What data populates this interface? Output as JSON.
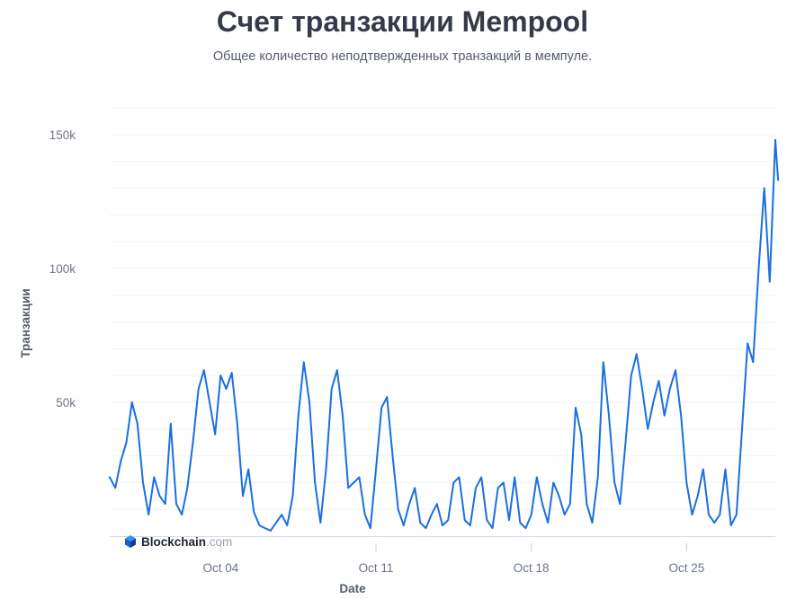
{
  "chart_data": {
    "type": "line",
    "title": "Счет транзакции Mempool",
    "subtitle": "Общее количество неподтвержденных транзакций в мемпуле.",
    "xlabel": "Date",
    "ylabel": "Транзакции",
    "x_ticks": [
      {
        "date": "2023-10-04",
        "label": "Oct 04"
      },
      {
        "date": "2023-10-11",
        "label": "Oct 11"
      },
      {
        "date": "2023-10-18",
        "label": "Oct 18"
      },
      {
        "date": "2023-10-25",
        "label": "Oct 25"
      }
    ],
    "y_ticks": [
      {
        "value": 50000,
        "label": "50k"
      },
      {
        "value": 100000,
        "label": "100k"
      },
      {
        "value": 150000,
        "label": "150k"
      }
    ],
    "xlim": [
      "2023-09-29",
      "2023-10-29"
    ],
    "ylim": [
      0,
      160000
    ],
    "grid": true,
    "line_color": "#1a6fe0",
    "series": [
      {
        "points": [
          [
            "2023-09-29 00:00",
            22000
          ],
          [
            "2023-09-29 06:00",
            18000
          ],
          [
            "2023-09-29 12:00",
            28000
          ],
          [
            "2023-09-29 18:00",
            35000
          ],
          [
            "2023-09-30 00:00",
            50000
          ],
          [
            "2023-09-30 06:00",
            42000
          ],
          [
            "2023-09-30 12:00",
            20000
          ],
          [
            "2023-09-30 18:00",
            8000
          ],
          [
            "2023-10-01 00:00",
            22000
          ],
          [
            "2023-10-01 06:00",
            15000
          ],
          [
            "2023-10-01 12:00",
            12000
          ],
          [
            "2023-10-01 18:00",
            42000
          ],
          [
            "2023-10-02 00:00",
            12000
          ],
          [
            "2023-10-02 06:00",
            8000
          ],
          [
            "2023-10-02 12:00",
            18000
          ],
          [
            "2023-10-02 18:00",
            35000
          ],
          [
            "2023-10-03 00:00",
            55000
          ],
          [
            "2023-10-03 06:00",
            62000
          ],
          [
            "2023-10-03 12:00",
            50000
          ],
          [
            "2023-10-03 18:00",
            38000
          ],
          [
            "2023-10-04 00:00",
            60000
          ],
          [
            "2023-10-04 06:00",
            55000
          ],
          [
            "2023-10-04 12:00",
            61000
          ],
          [
            "2023-10-04 18:00",
            42000
          ],
          [
            "2023-10-05 00:00",
            15000
          ],
          [
            "2023-10-05 06:00",
            25000
          ],
          [
            "2023-10-05 12:00",
            9000
          ],
          [
            "2023-10-05 18:00",
            4000
          ],
          [
            "2023-10-06 00:00",
            3000
          ],
          [
            "2023-10-06 06:00",
            2000
          ],
          [
            "2023-10-06 12:00",
            5000
          ],
          [
            "2023-10-06 18:00",
            8000
          ],
          [
            "2023-10-07 00:00",
            4000
          ],
          [
            "2023-10-07 06:00",
            15000
          ],
          [
            "2023-10-07 12:00",
            45000
          ],
          [
            "2023-10-07 18:00",
            65000
          ],
          [
            "2023-10-08 00:00",
            50000
          ],
          [
            "2023-10-08 06:00",
            20000
          ],
          [
            "2023-10-08 12:00",
            5000
          ],
          [
            "2023-10-08 18:00",
            25000
          ],
          [
            "2023-10-09 00:00",
            55000
          ],
          [
            "2023-10-09 06:00",
            62000
          ],
          [
            "2023-10-09 12:00",
            45000
          ],
          [
            "2023-10-09 18:00",
            18000
          ],
          [
            "2023-10-10 00:00",
            20000
          ],
          [
            "2023-10-10 06:00",
            22000
          ],
          [
            "2023-10-10 12:00",
            8000
          ],
          [
            "2023-10-10 18:00",
            3000
          ],
          [
            "2023-10-11 00:00",
            25000
          ],
          [
            "2023-10-11 06:00",
            48000
          ],
          [
            "2023-10-11 12:00",
            52000
          ],
          [
            "2023-10-11 18:00",
            30000
          ],
          [
            "2023-10-12 00:00",
            10000
          ],
          [
            "2023-10-12 06:00",
            4000
          ],
          [
            "2023-10-12 12:00",
            12000
          ],
          [
            "2023-10-12 18:00",
            18000
          ],
          [
            "2023-10-13 00:00",
            5000
          ],
          [
            "2023-10-13 06:00",
            3000
          ],
          [
            "2023-10-13 12:00",
            8000
          ],
          [
            "2023-10-13 18:00",
            12000
          ],
          [
            "2023-10-14 00:00",
            4000
          ],
          [
            "2023-10-14 06:00",
            6000
          ],
          [
            "2023-10-14 12:00",
            20000
          ],
          [
            "2023-10-14 18:00",
            22000
          ],
          [
            "2023-10-15 00:00",
            6000
          ],
          [
            "2023-10-15 06:00",
            4000
          ],
          [
            "2023-10-15 12:00",
            18000
          ],
          [
            "2023-10-15 18:00",
            22000
          ],
          [
            "2023-10-16 00:00",
            6000
          ],
          [
            "2023-10-16 06:00",
            3000
          ],
          [
            "2023-10-16 12:00",
            18000
          ],
          [
            "2023-10-16 18:00",
            20000
          ],
          [
            "2023-10-17 00:00",
            6000
          ],
          [
            "2023-10-17 06:00",
            22000
          ],
          [
            "2023-10-17 12:00",
            5000
          ],
          [
            "2023-10-17 18:00",
            3000
          ],
          [
            "2023-10-18 00:00",
            8000
          ],
          [
            "2023-10-18 06:00",
            22000
          ],
          [
            "2023-10-18 12:00",
            12000
          ],
          [
            "2023-10-18 18:00",
            5000
          ],
          [
            "2023-10-19 00:00",
            20000
          ],
          [
            "2023-10-19 06:00",
            15000
          ],
          [
            "2023-10-19 12:00",
            8000
          ],
          [
            "2023-10-19 18:00",
            12000
          ],
          [
            "2023-10-20 00:00",
            48000
          ],
          [
            "2023-10-20 06:00",
            38000
          ],
          [
            "2023-10-20 12:00",
            12000
          ],
          [
            "2023-10-20 18:00",
            5000
          ],
          [
            "2023-10-21 00:00",
            22000
          ],
          [
            "2023-10-21 06:00",
            65000
          ],
          [
            "2023-10-21 12:00",
            45000
          ],
          [
            "2023-10-21 18:00",
            20000
          ],
          [
            "2023-10-22 00:00",
            12000
          ],
          [
            "2023-10-22 06:00",
            35000
          ],
          [
            "2023-10-22 12:00",
            60000
          ],
          [
            "2023-10-22 18:00",
            68000
          ],
          [
            "2023-10-23 00:00",
            55000
          ],
          [
            "2023-10-23 06:00",
            40000
          ],
          [
            "2023-10-23 12:00",
            50000
          ],
          [
            "2023-10-23 18:00",
            58000
          ],
          [
            "2023-10-24 00:00",
            45000
          ],
          [
            "2023-10-24 06:00",
            55000
          ],
          [
            "2023-10-24 12:00",
            62000
          ],
          [
            "2023-10-24 18:00",
            45000
          ],
          [
            "2023-10-25 00:00",
            20000
          ],
          [
            "2023-10-25 06:00",
            8000
          ],
          [
            "2023-10-25 12:00",
            15000
          ],
          [
            "2023-10-25 18:00",
            25000
          ],
          [
            "2023-10-26 00:00",
            8000
          ],
          [
            "2023-10-26 06:00",
            5000
          ],
          [
            "2023-10-26 12:00",
            8000
          ],
          [
            "2023-10-26 18:00",
            25000
          ],
          [
            "2023-10-27 00:00",
            4000
          ],
          [
            "2023-10-27 06:00",
            8000
          ],
          [
            "2023-10-27 12:00",
            40000
          ],
          [
            "2023-10-27 18:00",
            72000
          ],
          [
            "2023-10-28 00:00",
            65000
          ],
          [
            "2023-10-28 06:00",
            100000
          ],
          [
            "2023-10-28 12:00",
            130000
          ],
          [
            "2023-10-28 18:00",
            95000
          ],
          [
            "2023-10-29 00:00",
            148000
          ],
          [
            "2023-10-29 03:00",
            133000
          ]
        ]
      }
    ]
  },
  "logo": {
    "name": "Blockchain",
    "suffix": ".com"
  }
}
